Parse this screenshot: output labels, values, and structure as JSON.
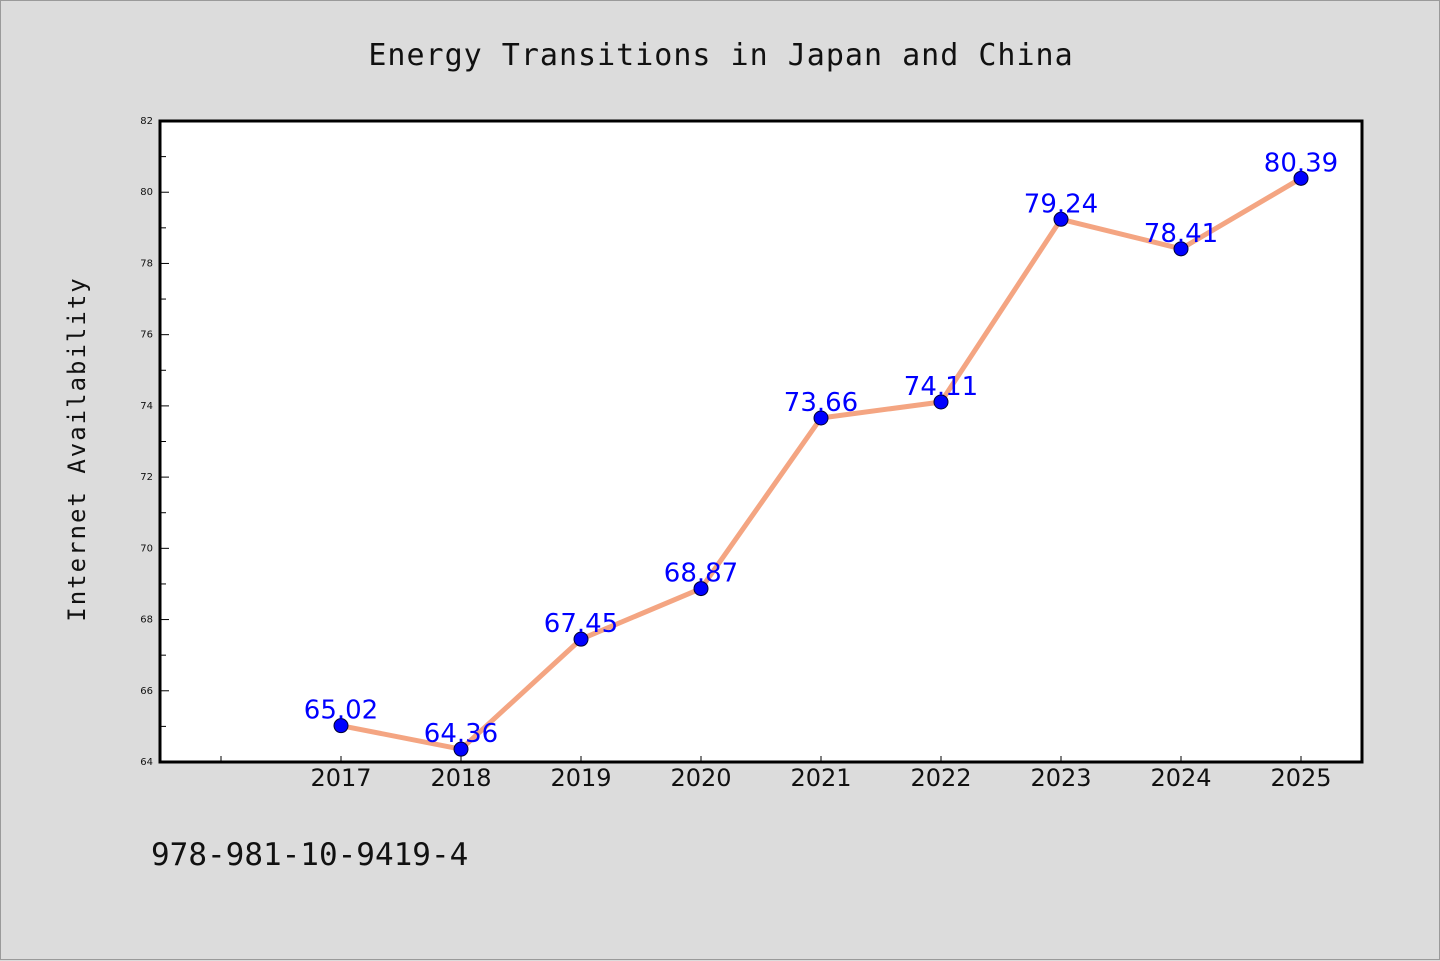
{
  "chart_data": {
    "type": "line",
    "title": "Energy Transitions in Japan and China",
    "xlabel": "",
    "ylabel": "Internet Availability",
    "categories": [
      "2017",
      "2018",
      "2019",
      "2020",
      "2021",
      "2022",
      "2023",
      "2024",
      "2025"
    ],
    "series": [
      {
        "values": [
          65.02,
          64.36,
          67.45,
          68.87,
          73.66,
          74.11,
          79.24,
          78.41,
          80.39
        ],
        "data_labels": [
          "65.02",
          "64.36",
          "67.45",
          "68.87",
          "73.66",
          "74.11",
          "79.24",
          "78.41",
          "80.39"
        ]
      }
    ],
    "ylim": [
      64,
      82
    ],
    "yticks": [
      "64",
      "66",
      "68",
      "70",
      "72",
      "74",
      "76",
      "78",
      "80",
      "82"
    ],
    "grid": false,
    "legend": "none",
    "colors": {
      "line": "#f4a582",
      "marker": "#0000ff",
      "data_label": "#0000ff",
      "plot_background": "#ffffff",
      "page_background": "#dcdcdc"
    }
  },
  "footer_text": "978-981-10-9419-4"
}
